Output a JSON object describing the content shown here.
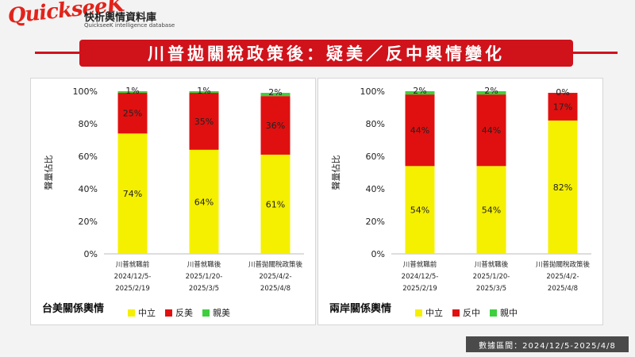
{
  "brand": {
    "logo_text": "QuickseeK",
    "name_cn": "快析輿情資料庫",
    "name_en": "QuickseeK intelligence database"
  },
  "title": "川普拋關稅政策後：疑美／反中輿情變化",
  "footer": "數據區間：2024/12/5-2025/4/8",
  "colors": {
    "neutral": "#f5ef00",
    "negative": "#e01010",
    "positive": "#3ecf3e",
    "title_bg": "#d0121b"
  },
  "chart_data": [
    {
      "type": "bar",
      "stacked": true,
      "caption": "台美關係輿情",
      "ylabel": "聲量佔比",
      "ylim": [
        0,
        100
      ],
      "yticks": [
        "0%",
        "20%",
        "40%",
        "60%",
        "80%",
        "100%"
      ],
      "categories": [
        [
          "川普就職前",
          "2024/12/5-",
          "2025/2/19"
        ],
        [
          "川普就職後",
          "2025/1/20-",
          "2025/3/5"
        ],
        [
          "川普拋關稅政策後",
          "2025/4/2-",
          "2025/4/8"
        ]
      ],
      "series": [
        {
          "name": "中立",
          "color": "#f5ef00",
          "values": [
            74,
            64,
            61
          ],
          "labels": [
            "74%",
            "64%",
            "61%"
          ]
        },
        {
          "name": "反美",
          "color": "#e01010",
          "values": [
            25,
            35,
            36
          ],
          "labels": [
            "25%",
            "35%",
            "36%"
          ]
        },
        {
          "name": "親美",
          "color": "#3ecf3e",
          "values": [
            1,
            1,
            2
          ],
          "labels": [
            "1%",
            "1%",
            "2%"
          ]
        }
      ],
      "grid": false,
      "legend": "bottom"
    },
    {
      "type": "bar",
      "stacked": true,
      "caption": "兩岸關係輿情",
      "ylabel": "聲量佔比",
      "ylim": [
        0,
        100
      ],
      "yticks": [
        "0%",
        "20%",
        "40%",
        "60%",
        "80%",
        "100%"
      ],
      "categories": [
        [
          "川普就職前",
          "2024/12/5-",
          "2025/2/19"
        ],
        [
          "川普就職後",
          "2025/1/20-",
          "2025/3/5"
        ],
        [
          "川普拋關稅政策後",
          "2025/4/2-",
          "2025/4/8"
        ]
      ],
      "series": [
        {
          "name": "中立",
          "color": "#f5ef00",
          "values": [
            54,
            54,
            82
          ],
          "labels": [
            "54%",
            "54%",
            "82%"
          ]
        },
        {
          "name": "反中",
          "color": "#e01010",
          "values": [
            44,
            44,
            17
          ],
          "labels": [
            "44%",
            "44%",
            "17%"
          ]
        },
        {
          "name": "親中",
          "color": "#3ecf3e",
          "values": [
            2,
            2,
            0
          ],
          "labels": [
            "2%",
            "2%",
            "0%"
          ]
        }
      ],
      "grid": false,
      "legend": "bottom"
    }
  ]
}
